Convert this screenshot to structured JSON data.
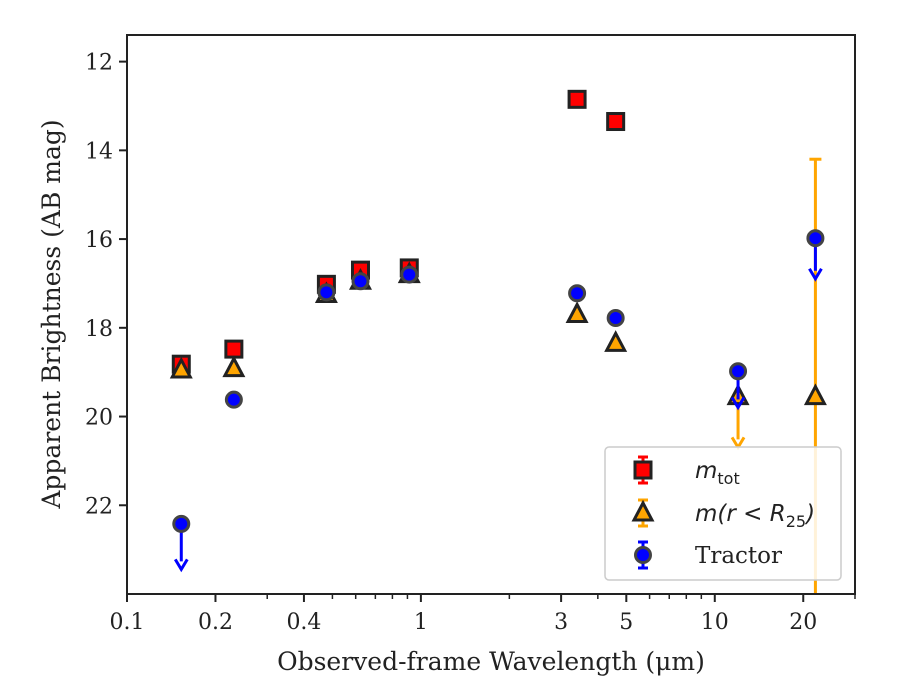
{
  "chart_data": {
    "type": "scatter",
    "xlabel": "Observed-frame Wavelength (μm)",
    "ylabel": "Apparent Brightness (AB mag)",
    "xscale": "log",
    "xlim": [
      0.1,
      30
    ],
    "ylim": [
      24,
      11.4
    ],
    "y_inverted": true,
    "xticks": [
      {
        "value": 0.1,
        "label": "0.1"
      },
      {
        "value": 0.2,
        "label": "0.2"
      },
      {
        "value": 0.4,
        "label": "0.4"
      },
      {
        "value": 1,
        "label": "1"
      },
      {
        "value": 3,
        "label": "3"
      },
      {
        "value": 5,
        "label": "5"
      },
      {
        "value": 10,
        "label": "10"
      },
      {
        "value": 20,
        "label": "20"
      }
    ],
    "yticks": [
      {
        "value": 12,
        "label": "12"
      },
      {
        "value": 14,
        "label": "14"
      },
      {
        "value": 16,
        "label": "16"
      },
      {
        "value": 18,
        "label": "18"
      },
      {
        "value": 20,
        "label": "20"
      },
      {
        "value": 22,
        "label": "22"
      }
    ],
    "legend_position": "lower-right",
    "grid": false,
    "series": [
      {
        "legend_main": "m",
        "legend_sub": "tot",
        "marker": "square",
        "color": "#ff0000",
        "edge_color": "#222222",
        "points": [
          {
            "x": 0.153,
            "y": 18.82
          },
          {
            "x": 0.231,
            "y": 18.48
          },
          {
            "x": 0.477,
            "y": 17.02
          },
          {
            "x": 0.623,
            "y": 16.7
          },
          {
            "x": 0.913,
            "y": 16.65
          },
          {
            "x": 3.4,
            "y": 12.85
          },
          {
            "x": 4.6,
            "y": 13.35
          }
        ]
      },
      {
        "legend_main": "m(r < R",
        "legend_sub": "25",
        "legend_tail": ")",
        "marker": "triangle",
        "color": "#ffa500",
        "edge_color": "#222222",
        "points": [
          {
            "x": 0.153,
            "y": 18.95
          },
          {
            "x": 0.231,
            "y": 18.92
          },
          {
            "x": 0.477,
            "y": 17.25
          },
          {
            "x": 0.623,
            "y": 16.95
          },
          {
            "x": 0.913,
            "y": 16.8
          },
          {
            "x": 3.4,
            "y": 17.7
          },
          {
            "x": 4.6,
            "y": 18.35
          },
          {
            "x": 12.0,
            "y": 19.55,
            "upper_limit_to": 20.65
          },
          {
            "x": 22.0,
            "y": 19.55,
            "error": [
              14.2,
              24.0
            ]
          }
        ]
      },
      {
        "legend_main": "Tractor",
        "marker": "circle",
        "color": "#0000ff",
        "edge_color": "#444444",
        "points": [
          {
            "x": 0.153,
            "y": 22.42,
            "upper_limit_to": 23.4
          },
          {
            "x": 0.231,
            "y": 19.62
          },
          {
            "x": 0.477,
            "y": 17.2
          },
          {
            "x": 0.623,
            "y": 16.95
          },
          {
            "x": 0.913,
            "y": 16.8
          },
          {
            "x": 3.4,
            "y": 17.22
          },
          {
            "x": 4.6,
            "y": 17.78
          },
          {
            "x": 12.0,
            "y": 18.98,
            "upper_limit_to": 19.75
          },
          {
            "x": 22.0,
            "y": 15.98,
            "upper_limit_to": 16.85
          }
        ]
      }
    ]
  }
}
